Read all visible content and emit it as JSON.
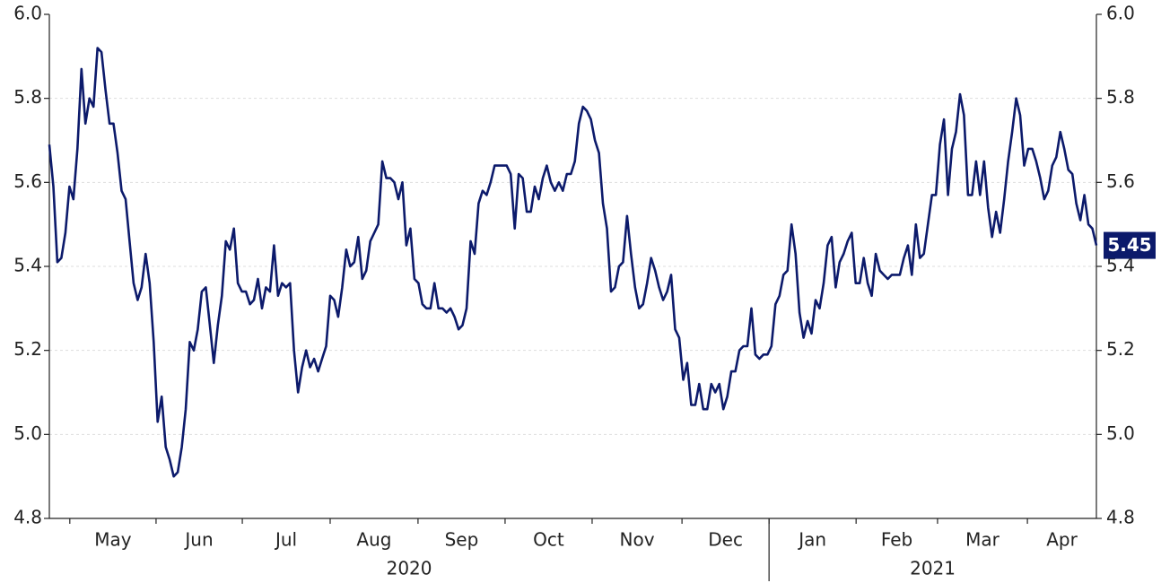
{
  "chart_data": {
    "type": "line",
    "series": [
      {
        "color": "#0c1a6b",
        "values": [
          5.69,
          5.59,
          5.41,
          5.42,
          5.48,
          5.59,
          5.56,
          5.68,
          5.87,
          5.74,
          5.8,
          5.78,
          5.92,
          5.91,
          5.82,
          5.74,
          5.74,
          5.67,
          5.58,
          5.56,
          5.46,
          5.36,
          5.32,
          5.35,
          5.43,
          5.36,
          5.22,
          5.03,
          5.09,
          4.97,
          4.94,
          4.9,
          4.91,
          4.97,
          5.06,
          5.22,
          5.2,
          5.25,
          5.34,
          5.35,
          5.26,
          5.17,
          5.26,
          5.33,
          5.46,
          5.44,
          5.49,
          5.36,
          5.34,
          5.34,
          5.31,
          5.32,
          5.37,
          5.3,
          5.35,
          5.34,
          5.45,
          5.33,
          5.36,
          5.35,
          5.36,
          5.2,
          5.1,
          5.16,
          5.2,
          5.16,
          5.18,
          5.15,
          5.18,
          5.21,
          5.33,
          5.32,
          5.28,
          5.35,
          5.44,
          5.4,
          5.41,
          5.47,
          5.37,
          5.39,
          5.46,
          5.48,
          5.5,
          5.65,
          5.61,
          5.61,
          5.6,
          5.56,
          5.6,
          5.45,
          5.49,
          5.37,
          5.36,
          5.31,
          5.3,
          5.3,
          5.36,
          5.3,
          5.3,
          5.29,
          5.3,
          5.28,
          5.25,
          5.26,
          5.3,
          5.46,
          5.43,
          5.55,
          5.58,
          5.57,
          5.6,
          5.64,
          5.64,
          5.64,
          5.64,
          5.62,
          5.49,
          5.62,
          5.61,
          5.53,
          5.53,
          5.59,
          5.56,
          5.61,
          5.64,
          5.6,
          5.58,
          5.6,
          5.58,
          5.62,
          5.62,
          5.65,
          5.74,
          5.78,
          5.77,
          5.75,
          5.7,
          5.67,
          5.55,
          5.49,
          5.34,
          5.35,
          5.4,
          5.41,
          5.52,
          5.43,
          5.35,
          5.3,
          5.31,
          5.36,
          5.42,
          5.39,
          5.35,
          5.32,
          5.34,
          5.38,
          5.25,
          5.23,
          5.13,
          5.17,
          5.07,
          5.07,
          5.12,
          5.06,
          5.06,
          5.12,
          5.1,
          5.12,
          5.06,
          5.09,
          5.15,
          5.15,
          5.2,
          5.21,
          5.21,
          5.3,
          5.19,
          5.18,
          5.19,
          5.19,
          5.21,
          5.31,
          5.33,
          5.38,
          5.39,
          5.5,
          5.43,
          5.29,
          5.23,
          5.27,
          5.24,
          5.32,
          5.3,
          5.36,
          5.45,
          5.47,
          5.35,
          5.41,
          5.43,
          5.46,
          5.48,
          5.36,
          5.36,
          5.42,
          5.36,
          5.33,
          5.43,
          5.39,
          5.38,
          5.37,
          5.38,
          5.38,
          5.38,
          5.42,
          5.45,
          5.38,
          5.5,
          5.42,
          5.43,
          5.5,
          5.57,
          5.57,
          5.69,
          5.75,
          5.57,
          5.68,
          5.72,
          5.81,
          5.76,
          5.57,
          5.57,
          5.65,
          5.57,
          5.65,
          5.54,
          5.47,
          5.53,
          5.48,
          5.56,
          5.65,
          5.72,
          5.8,
          5.76,
          5.64,
          5.68,
          5.68,
          5.65,
          5.61,
          5.56,
          5.58,
          5.64,
          5.66,
          5.72,
          5.68,
          5.63,
          5.62,
          5.55,
          5.51,
          5.57,
          5.5,
          5.49,
          5.45
        ]
      }
    ],
    "end_label": "5.45",
    "xlim": [
      0,
      261
    ],
    "xticks": [
      {
        "value": 5.1,
        "label": "May"
      },
      {
        "value": 26.6,
        "label": "Jun"
      },
      {
        "value": 48.1,
        "label": "Jul"
      },
      {
        "value": 70.0,
        "label": "Aug"
      },
      {
        "value": 91.9,
        "label": "Sep"
      },
      {
        "value": 113.6,
        "label": "Oct"
      },
      {
        "value": 135.3,
        "label": "Nov"
      },
      {
        "value": 157.7,
        "label": "Dec"
      },
      {
        "value": 179.4,
        "label": "Jan"
      },
      {
        "value": 201.1,
        "label": "Feb"
      },
      {
        "value": 221.4,
        "label": "Mar"
      },
      {
        "value": 243.8,
        "label": "Apr"
      }
    ],
    "years": [
      "2020",
      "2021"
    ],
    "ylim": [
      4.8,
      6.0
    ],
    "yticks": [
      {
        "value": 4.8,
        "label": "4.8"
      },
      {
        "value": 5.0,
        "label": "5.0"
      },
      {
        "value": 5.2,
        "label": "5.2"
      },
      {
        "value": 5.4,
        "label": "5.4"
      },
      {
        "value": 5.6,
        "label": "5.6"
      },
      {
        "value": 5.8,
        "label": "5.8"
      },
      {
        "value": 6.0,
        "label": "6.0"
      }
    ],
    "grid": true
  }
}
